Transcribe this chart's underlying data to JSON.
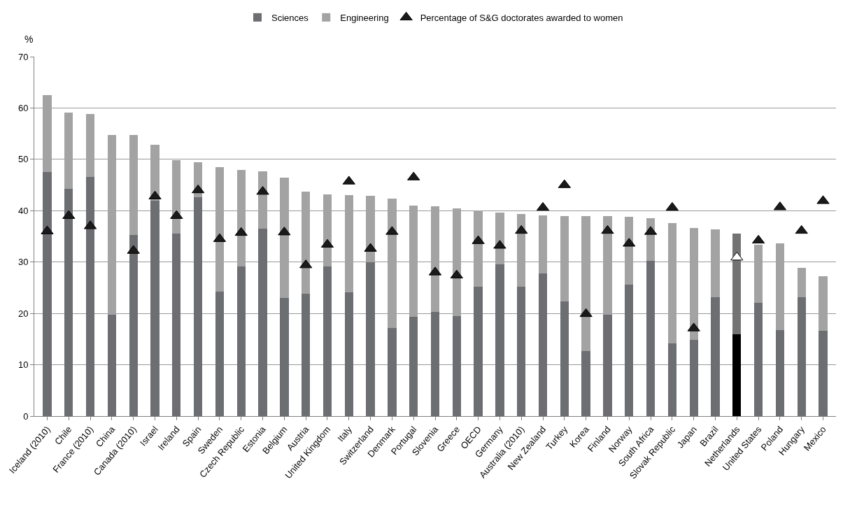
{
  "chart_data": {
    "type": "bar",
    "stacked": true,
    "ylabel": "%",
    "ylim": [
      0,
      70
    ],
    "yticks": [
      0,
      10,
      20,
      30,
      40,
      50,
      60,
      70
    ],
    "grid": "y",
    "legend": "top",
    "categories": [
      "Iceland (2010)",
      "Chile",
      "France (2010)",
      "China",
      "Canada (2010)",
      "Israel",
      "Ireland",
      "Spain",
      "Sweden",
      "Czech Republic",
      "Estonia",
      "Belgium",
      "Austria",
      "United Kingdom",
      "Italy",
      "Switzerland",
      "Denmark",
      "Portugal",
      "Slovenia",
      "Greece",
      "OECD",
      "Germany",
      "Australia (2010)",
      "New Zealand",
      "Turkey",
      "Korea",
      "Finland",
      "Norway",
      "South Africa",
      "Slovak Republic",
      "Japan",
      "Brazil",
      "Netherlands",
      "United States",
      "Poland",
      "Hungary",
      "Mexico"
    ],
    "series": [
      {
        "name": "Sciences",
        "colors": [
          "#6d6e72",
          "#6d6e72",
          "#6d6e72",
          "#6d6e72",
          "#6d6e72",
          "#6d6e72",
          "#6d6e72",
          "#6d6e72",
          "#6d6e72",
          "#6d6e72",
          "#6d6e72",
          "#6d6e72",
          "#6d6e72",
          "#6d6e72",
          "#6d6e72",
          "#6d6e72",
          "#6d6e72",
          "#6d6e72",
          "#6d6e72",
          "#6d6e72",
          "#6d6e72",
          "#6d6e72",
          "#6d6e72",
          "#6d6e72",
          "#6d6e72",
          "#6d6e72",
          "#6d6e72",
          "#6d6e72",
          "#6d6e72",
          "#6d6e72",
          "#6d6e72",
          "#6d6e72",
          "#000000",
          "#6d6e72",
          "#6d6e72",
          "#6d6e72",
          "#6d6e72"
        ],
        "values": [
          47.5,
          44.3,
          46.6,
          19.7,
          35.3,
          42,
          35.6,
          42.6,
          24.2,
          29.1,
          36.5,
          23,
          23.8,
          29.1,
          24.1,
          30,
          17.2,
          19.4,
          20.3,
          19.5,
          25.2,
          29.5,
          25.2,
          27.8,
          22.4,
          12.6,
          19.7,
          25.6,
          30.2,
          14.1,
          14.9,
          23.1,
          16,
          22.1,
          16.7,
          23.1,
          16.6
        ]
      },
      {
        "name": "Engineering",
        "colors": [
          "#a3a3a3",
          "#a3a3a3",
          "#a3a3a3",
          "#a3a3a3",
          "#a3a3a3",
          "#a3a3a3",
          "#a3a3a3",
          "#a3a3a3",
          "#a3a3a3",
          "#a3a3a3",
          "#a3a3a3",
          "#a3a3a3",
          "#a3a3a3",
          "#a3a3a3",
          "#a3a3a3",
          "#a3a3a3",
          "#a3a3a3",
          "#a3a3a3",
          "#a3a3a3",
          "#a3a3a3",
          "#a3a3a3",
          "#a3a3a3",
          "#a3a3a3",
          "#a3a3a3",
          "#a3a3a3",
          "#a3a3a3",
          "#a3a3a3",
          "#a3a3a3",
          "#a3a3a3",
          "#a3a3a3",
          "#a3a3a3",
          "#a3a3a3",
          "#737373",
          "#a3a3a3",
          "#a3a3a3",
          "#a3a3a3",
          "#a3a3a3"
        ],
        "values": [
          15,
          14.8,
          12.3,
          35.1,
          19.5,
          10.8,
          14.2,
          6.9,
          24.3,
          18.8,
          11.1,
          23.4,
          19.9,
          14.1,
          18.9,
          12.9,
          25.2,
          21.6,
          20.6,
          21,
          14.8,
          10.1,
          14.2,
          11.3,
          16.6,
          26.4,
          19.2,
          13.2,
          8.4,
          23.5,
          21.8,
          13.3,
          19.5,
          11.2,
          17,
          5.8,
          10.7
        ]
      },
      {
        "name": "Percentage of S&G doctorates awarded to women",
        "type": "scatter",
        "marker": "triangle",
        "colors": [
          "#1a1a1a",
          "#1a1a1a",
          "#1a1a1a",
          "#1a1a1a",
          "#1a1a1a",
          "#1a1a1a",
          "#1a1a1a",
          "#1a1a1a",
          "#1a1a1a",
          "#1a1a1a",
          "#1a1a1a",
          "#1a1a1a",
          "#1a1a1a",
          "#1a1a1a",
          "#1a1a1a",
          "#1a1a1a",
          "#1a1a1a",
          "#1a1a1a",
          "#1a1a1a",
          "#1a1a1a",
          "#1a1a1a",
          "#1a1a1a",
          "#1a1a1a",
          "#1a1a1a",
          "#1a1a1a",
          "#1a1a1a",
          "#1a1a1a",
          "#1a1a1a",
          "#1a1a1a",
          "#1a1a1a",
          "#1a1a1a",
          "#1a1a1a",
          "#ffffff",
          "#1a1a1a",
          "#1a1a1a",
          "#1a1a1a",
          "#1a1a1a"
        ],
        "values": [
          36,
          39,
          37,
          null,
          32.2,
          42.8,
          39,
          44,
          34.5,
          35.7,
          43.7,
          35.8,
          29.4,
          33.4,
          45.7,
          32.6,
          35.9,
          46.5,
          28,
          27.4,
          34.1,
          33.2,
          36.1,
          40.6,
          45,
          19.9,
          36.1,
          33.6,
          35.9,
          40.6,
          17.1,
          null,
          30.9,
          34.2,
          40.7,
          36.1,
          41.9
        ]
      }
    ]
  }
}
